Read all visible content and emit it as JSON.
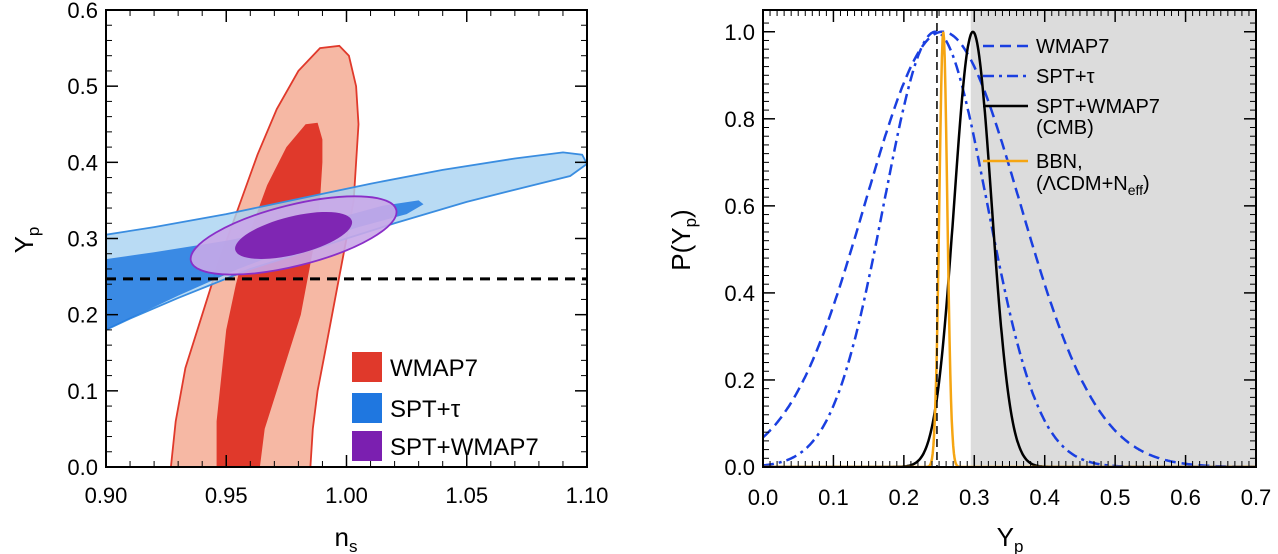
{
  "chart_data": [
    {
      "type": "contour",
      "xlabel": "n",
      "xlabel_sub": "s",
      "ylabel": "Y",
      "ylabel_sub": "p",
      "xlim": [
        0.9,
        1.1
      ],
      "ylim": [
        0.0,
        0.6
      ],
      "xticks": [
        "0.90",
        "0.95",
        "1.00",
        "1.05",
        "1.10"
      ],
      "yticks": [
        "0.0",
        "0.1",
        "0.2",
        "0.3",
        "0.4",
        "0.5",
        "0.6"
      ],
      "reference_line": {
        "y": 0.247,
        "style": "dashed"
      },
      "legend_placement": "bottom-right",
      "series": [
        {
          "name": "WMAP7",
          "color": "#e0392b",
          "light_color": "#f6b8a4",
          "edge_color": "#e0392b",
          "outer": [
            [
              0.927,
              0.0
            ],
            [
              0.929,
              0.06
            ],
            [
              0.933,
              0.13
            ],
            [
              0.94,
              0.2
            ],
            [
              0.947,
              0.27
            ],
            [
              0.955,
              0.34
            ],
            [
              0.963,
              0.41
            ],
            [
              0.971,
              0.47
            ],
            [
              0.98,
              0.52
            ],
            [
              0.989,
              0.55
            ],
            [
              0.997,
              0.553
            ],
            [
              1.001,
              0.54
            ],
            [
              1.004,
              0.5
            ],
            [
              1.005,
              0.45
            ],
            [
              1.004,
              0.4
            ],
            [
              1.003,
              0.35
            ],
            [
              1.0,
              0.3
            ],
            [
              0.997,
              0.25
            ],
            [
              0.994,
              0.2
            ],
            [
              0.991,
              0.15
            ],
            [
              0.988,
              0.1
            ],
            [
              0.986,
              0.05
            ],
            [
              0.985,
              0.0
            ]
          ],
          "inner": [
            [
              0.946,
              0.0
            ],
            [
              0.946,
              0.06
            ],
            [
              0.948,
              0.12
            ],
            [
              0.95,
              0.18
            ],
            [
              0.954,
              0.24
            ],
            [
              0.96,
              0.31
            ],
            [
              0.967,
              0.37
            ],
            [
              0.975,
              0.42
            ],
            [
              0.983,
              0.45
            ],
            [
              0.988,
              0.452
            ],
            [
              0.99,
              0.43
            ],
            [
              0.99,
              0.4
            ],
            [
              0.989,
              0.35
            ],
            [
              0.987,
              0.3
            ],
            [
              0.984,
              0.25
            ],
            [
              0.981,
              0.2
            ],
            [
              0.976,
              0.15
            ],
            [
              0.971,
              0.1
            ],
            [
              0.966,
              0.05
            ],
            [
              0.964,
              0.0
            ]
          ]
        },
        {
          "name": "SPT+τ",
          "color": "#1f77e0",
          "light_color": "#a9d3f2",
          "edge_color": "#3a8de0",
          "outer": [
            [
              0.9,
              0.305
            ],
            [
              0.92,
              0.315
            ],
            [
              0.95,
              0.332
            ],
            [
              0.98,
              0.352
            ],
            [
              1.01,
              0.372
            ],
            [
              1.04,
              0.39
            ],
            [
              1.07,
              0.405
            ],
            [
              1.09,
              0.413
            ],
            [
              1.098,
              0.41
            ],
            [
              1.1,
              0.398
            ],
            [
              1.093,
              0.382
            ],
            [
              1.075,
              0.368
            ],
            [
              1.05,
              0.348
            ],
            [
              1.02,
              0.32
            ],
            [
              0.99,
              0.29
            ],
            [
              0.96,
              0.26
            ],
            [
              0.93,
              0.222
            ],
            [
              0.91,
              0.195
            ],
            [
              0.9,
              0.18
            ]
          ],
          "inner": [
            [
              0.9,
              0.273
            ],
            [
              0.92,
              0.282
            ],
            [
              0.95,
              0.297
            ],
            [
              0.98,
              0.316
            ],
            [
              1.0,
              0.33
            ],
            [
              1.015,
              0.343
            ],
            [
              1.03,
              0.35
            ],
            [
              1.032,
              0.345
            ],
            [
              1.025,
              0.332
            ],
            [
              1.005,
              0.315
            ],
            [
              0.98,
              0.29
            ],
            [
              0.955,
              0.26
            ],
            [
              0.93,
              0.225
            ],
            [
              0.91,
              0.195
            ],
            [
              0.9,
              0.18
            ]
          ]
        },
        {
          "name": "SPT+WMAP7",
          "color": "#7b1fb0",
          "light_color": "#c9a8e8",
          "edge_color": "#8a2fc8",
          "outer": {
            "cx": 0.978,
            "cy": 0.304,
            "rx": 0.044,
            "ry": 0.04,
            "rot": 0.0
          },
          "inner": {
            "cx": 0.978,
            "cy": 0.304,
            "rx": 0.025,
            "ry": 0.025,
            "rot": 0.0
          }
        }
      ]
    },
    {
      "type": "line",
      "xlabel": "Y",
      "xlabel_sub": "p",
      "ylabel": "P(Y",
      "ylabel_sub": "p",
      "ylabel_close": ")",
      "xlim": [
        0.0,
        0.7
      ],
      "ylim": [
        0.0,
        1.05
      ],
      "xticks": [
        "0.0",
        "0.1",
        "0.2",
        "0.3",
        "0.4",
        "0.5",
        "0.6",
        "0.7"
      ],
      "yticks": [
        "0.0",
        "0.2",
        "0.4",
        "0.6",
        "0.8",
        "1.0"
      ],
      "shaded_region": {
        "x_start": 0.295,
        "x_end": 0.7,
        "color": "#dcdcdc"
      },
      "reference_line": {
        "x": 0.247,
        "style": "dashed"
      },
      "legend_placement": "top-right",
      "series": [
        {
          "name": "WMAP7",
          "color": "#1a3fe0",
          "style": "dashed",
          "mu": 0.255,
          "sigma": 0.11,
          "peak": 1.0
        },
        {
          "name": "SPT+τ",
          "color": "#1a3fe0",
          "style": "dashdot",
          "mu": 0.245,
          "sigma": 0.0732,
          "peak": 1.0
        },
        {
          "name": "SPT+WMAP7",
          "name_line2": "(CMB)",
          "color": "#000000",
          "style": "solid",
          "mu": 0.298,
          "sigma": 0.0266,
          "peak": 1.0
        },
        {
          "name": "BBN,",
          "name_line2": "(ΛCDM+N",
          "name_line2_sub": "eff",
          "name_line2_close": ")",
          "color": "#f5a512",
          "style": "solid",
          "mu": 0.256,
          "sigma": 0.0057,
          "peak": 1.0
        }
      ]
    }
  ]
}
